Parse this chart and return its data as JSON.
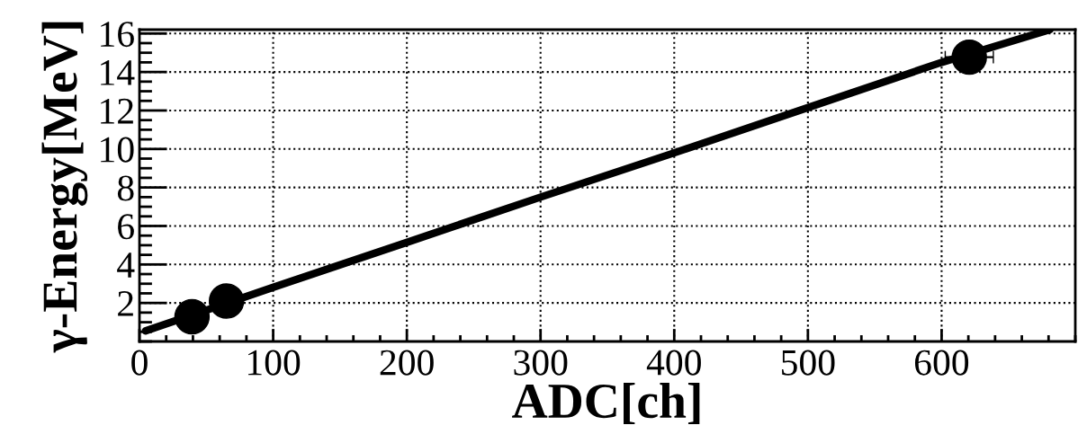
{
  "chart_data": {
    "type": "scatter",
    "xlabel": "ADC[ch]",
    "ylabel": "γ-Energy[MeV]",
    "xlim": [
      0,
      700
    ],
    "ylim": [
      0,
      16.2
    ],
    "xticks": [
      0,
      100,
      200,
      300,
      400,
      500,
      600
    ],
    "yticks": [
      2,
      4,
      6,
      8,
      10,
      12,
      14,
      16
    ],
    "grid": true,
    "series": [
      {
        "color": "#000000",
        "marker": "circle",
        "x": [
          39.3,
          65.1,
          620.7
        ],
        "values": [
          1.28,
          2.1,
          14.77
        ],
        "xerrors": [
          null,
          null,
          18
        ]
      },
      {
        "type": "line",
        "color": "#000000",
        "line_style": "solid",
        "x": [
          4.5,
          100,
          200,
          300,
          400,
          500,
          600,
          681
        ],
        "values": [
          0.55,
          2.81,
          5.15,
          7.5,
          9.8,
          12.15,
          14.5,
          16.2
        ]
      }
    ]
  }
}
